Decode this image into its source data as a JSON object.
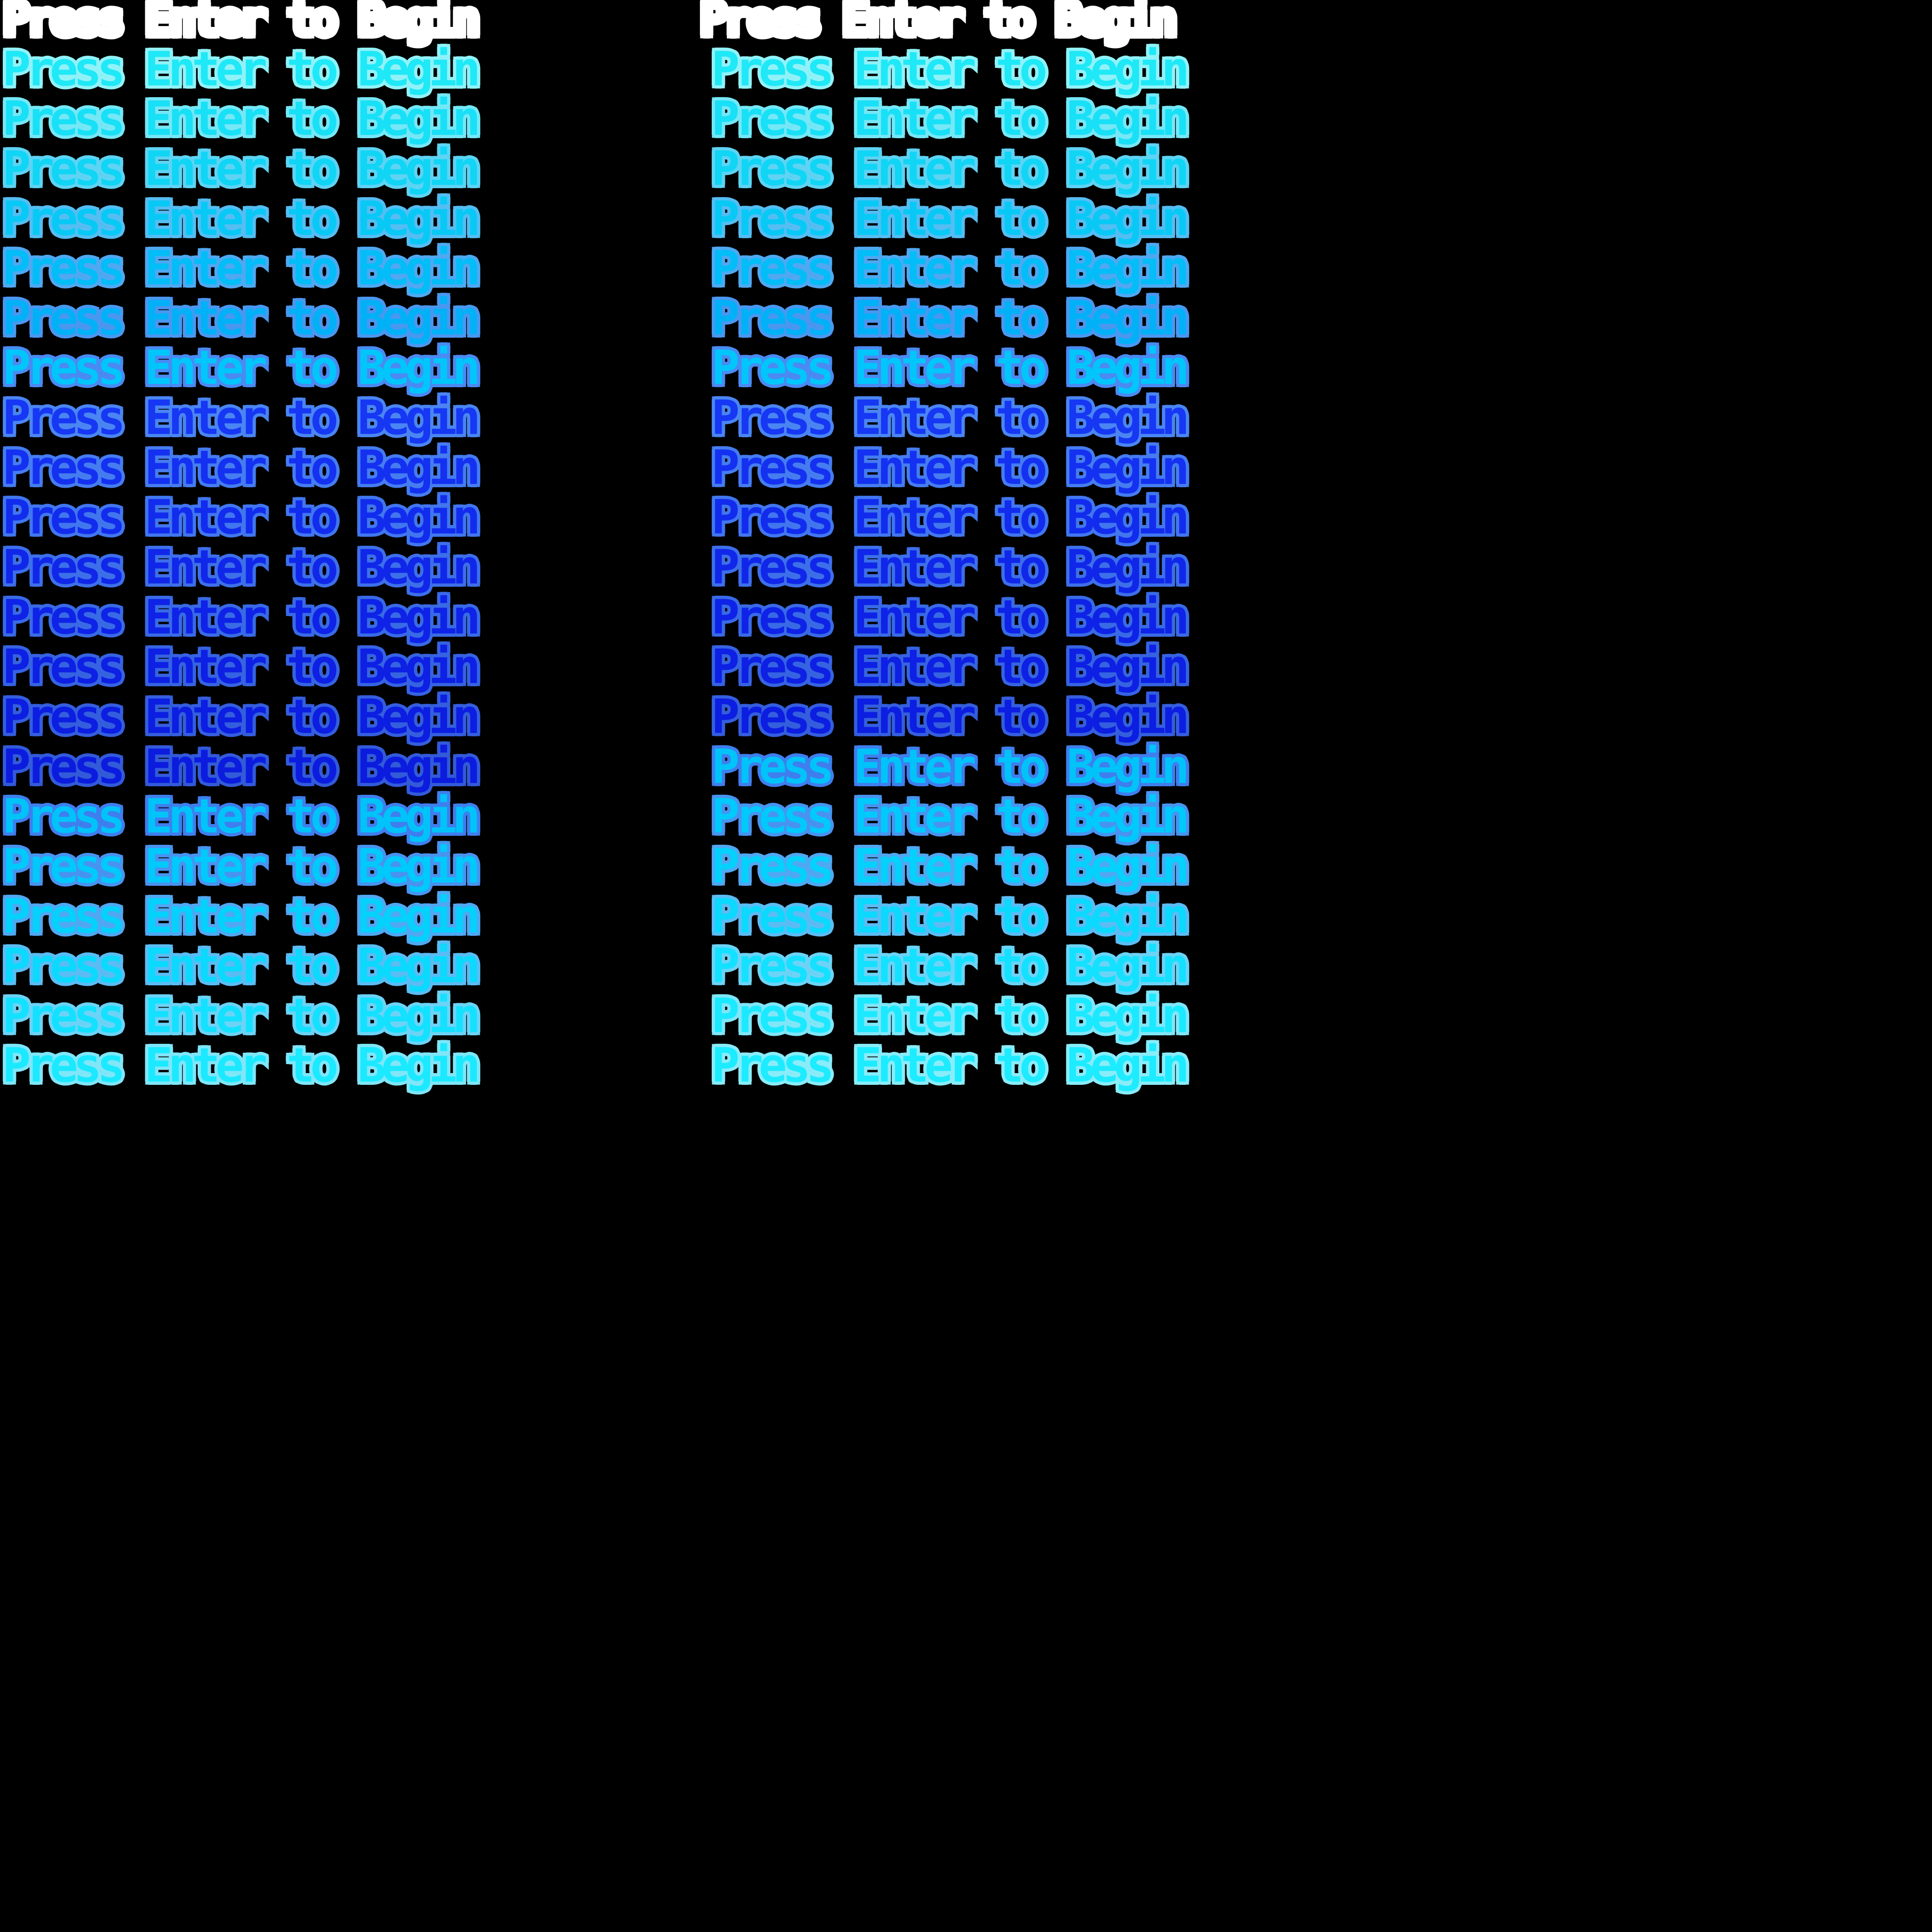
{
  "screen": {
    "type": "game-title-prompt-spritesheet",
    "background_color": "#000000",
    "prompt_text": "Press Enter to Begin"
  },
  "columns": [
    {
      "id": "left",
      "rows": [
        {
          "fill": "#ffffff",
          "outline": "#ffffff"
        },
        {
          "fill": "#1fe8f7",
          "outline": "#90f2f8"
        },
        {
          "fill": "#18e0f6",
          "outline": "#75e7f6"
        },
        {
          "fill": "#10d5f5",
          "outline": "#5ed3f3"
        },
        {
          "fill": "#08c9f6",
          "outline": "#55bdf2"
        },
        {
          "fill": "#02bdf7",
          "outline": "#4fa8f1"
        },
        {
          "fill": "#00b1f7",
          "outline": "#4a97f0"
        },
        {
          "fill": "#00c6fb",
          "outline": "#4a8af2"
        },
        {
          "fill": "#1637f3",
          "outline": "#4a85f2"
        },
        {
          "fill": "#1431f1",
          "outline": "#457cf0"
        },
        {
          "fill": "#122cee",
          "outline": "#4176ee"
        },
        {
          "fill": "#1027ea",
          "outline": "#3d6fe9"
        },
        {
          "fill": "#0e23e7",
          "outline": "#396ae5"
        },
        {
          "fill": "#0d20e4",
          "outline": "#3663e1"
        },
        {
          "fill": "#0c1ee1",
          "outline": "#345edd"
        },
        {
          "fill": "#0b1cdf",
          "outline": "#325ad9"
        },
        {
          "fill": "#00c3f9",
          "outline": "#3f7eee"
        },
        {
          "fill": "#00c9fb",
          "outline": "#4893f0"
        },
        {
          "fill": "#04d1fc",
          "outline": "#50a7f2"
        },
        {
          "fill": "#0bd9fe",
          "outline": "#5bbcf4"
        },
        {
          "fill": "#13e1ff",
          "outline": "#6cd3f6"
        },
        {
          "fill": "#1be9ff",
          "outline": "#80e6f8"
        }
      ]
    },
    {
      "id": "right",
      "rows": [
        {
          "fill": "#ffffff",
          "outline": "#ffffff"
        },
        {
          "fill": "#1fe8f7",
          "outline": "#90f2f8"
        },
        {
          "fill": "#18e0f6",
          "outline": "#75e7f6"
        },
        {
          "fill": "#10d5f5",
          "outline": "#5ed3f3"
        },
        {
          "fill": "#08c9f6",
          "outline": "#55bdf2"
        },
        {
          "fill": "#02bdf7",
          "outline": "#4fa8f1"
        },
        {
          "fill": "#00b1f7",
          "outline": "#4a97f0"
        },
        {
          "fill": "#00c6fb",
          "outline": "#4a8af2"
        },
        {
          "fill": "#1637f3",
          "outline": "#4a85f2"
        },
        {
          "fill": "#1431f1",
          "outline": "#457cf0"
        },
        {
          "fill": "#122cee",
          "outline": "#4176ee"
        },
        {
          "fill": "#1027ea",
          "outline": "#3d6fe9"
        },
        {
          "fill": "#0e23e7",
          "outline": "#396ae5"
        },
        {
          "fill": "#0d20e4",
          "outline": "#3663e1"
        },
        {
          "fill": "#0c1ee1",
          "outline": "#345edd"
        },
        {
          "fill": "#00c3f9",
          "outline": "#3f7eee"
        },
        {
          "fill": "#00c9fb",
          "outline": "#4893f0"
        },
        {
          "fill": "#04d1fc",
          "outline": "#50a7f2"
        },
        {
          "fill": "#0bd9fe",
          "outline": "#5bbcf4"
        },
        {
          "fill": "#13e1ff",
          "outline": "#6cd3f6"
        },
        {
          "fill": "#1be9ff",
          "outline": "#80e6f8"
        },
        {
          "fill": "#1debff",
          "outline": "#8aecf9"
        }
      ]
    }
  ]
}
